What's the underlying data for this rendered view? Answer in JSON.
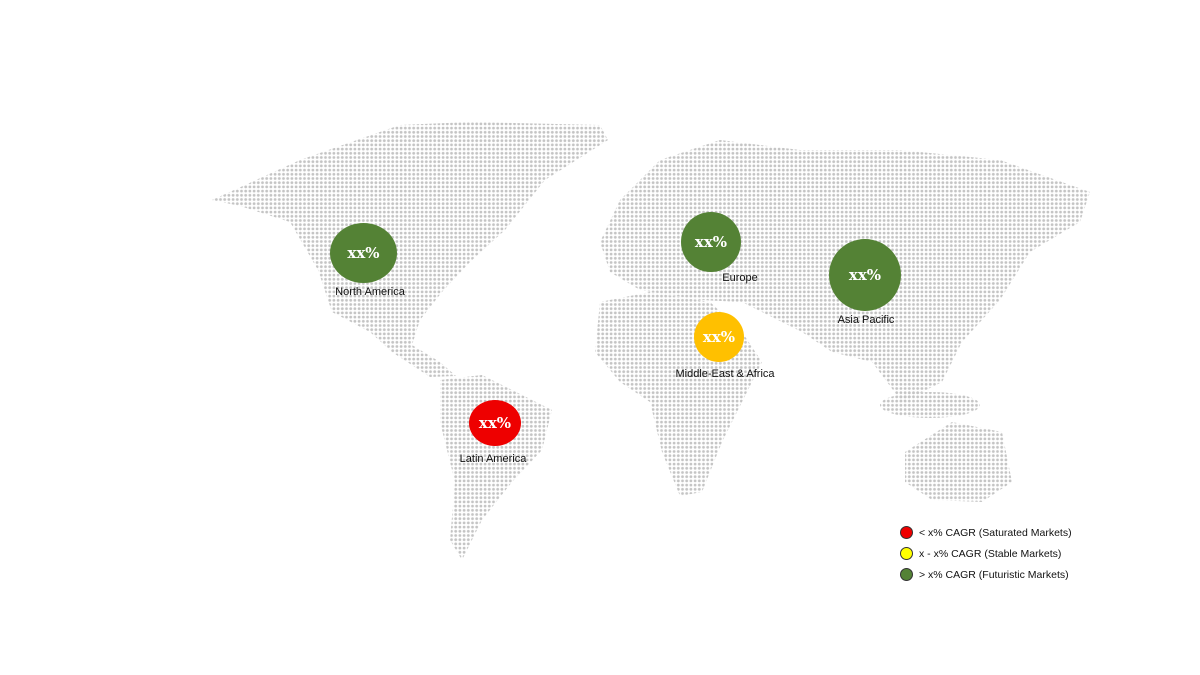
{
  "colors": {
    "saturated": "#ee0000",
    "stable": "#ffff00",
    "futuristic": "#548235",
    "mea_bubble": "#ffc000",
    "map_dots": "#c4c4c4"
  },
  "regions": [
    {
      "name": "North America",
      "value": "xx%",
      "status": "futuristic"
    },
    {
      "name": "Europe",
      "value": "xx%",
      "status": "futuristic"
    },
    {
      "name": "Asia Pacific",
      "value": "xx%",
      "status": "futuristic"
    },
    {
      "name": "Middle-East & Africa",
      "value": "xx%",
      "status": "stable"
    },
    {
      "name": "Latin America",
      "value": "xx%",
      "status": "saturated"
    }
  ],
  "legend": [
    {
      "label": "< x% CAGR (Saturated Markets)",
      "color": "#ee0000"
    },
    {
      "label": "x - x% CAGR (Stable Markets)",
      "color": "#ffff00"
    },
    {
      "label": "> x% CAGR (Futuristic Markets)",
      "color": "#548235"
    }
  ]
}
